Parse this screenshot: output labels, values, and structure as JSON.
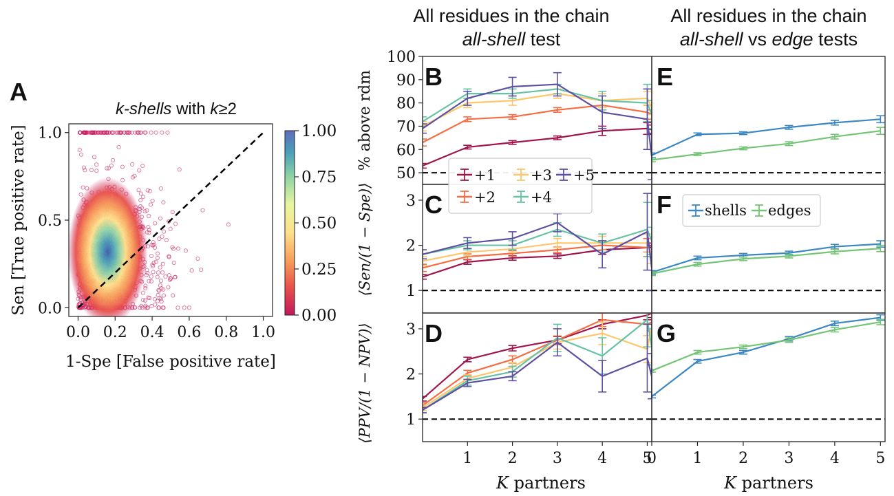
{
  "header": {
    "left_line1": "All residues in the chain",
    "left_line2_em": "all-shell",
    "left_line2_rest": " test",
    "right_line1": "All residues in the chain",
    "right_line2_em1": "all-shell",
    "right_line2_mid": " vs ",
    "right_line2_em2": "edge",
    "right_line2_rest": " tests"
  },
  "panel_letters": {
    "A": "A",
    "B": "B",
    "C": "C",
    "D": "D",
    "E": "E",
    "F": "F",
    "G": "G"
  },
  "panel_a": {
    "title_em1": "k-shells",
    "title_mid": " with ",
    "title_em2": "k",
    "title_rest": "≥2",
    "xlabel": "1-Spe [False positive rate]",
    "ylabel": "Sen [True positive rate]",
    "xticks": [
      "0.0",
      "0.2",
      "0.4",
      "0.6",
      "0.8",
      "1.0"
    ],
    "yticks": [
      "0.0",
      "0.5",
      "1.0"
    ],
    "colorbar_ticks": [
      "1.00",
      "0.75",
      "0.50",
      "0.25",
      "0.00"
    ]
  },
  "axes_text": {
    "ylabel_B": "% above rdm",
    "ylabel_C": "⟨Sen/(1 − Spe)⟩",
    "ylabel_D": "⟨PPV/(1 − NPV)⟩",
    "xlabel_left_em": "K",
    "xlabel_left_rest": " partners",
    "xlabel_right_em": "K",
    "xlabel_right_rest": " partners",
    "yticks_B": [
      "50",
      "60",
      "70",
      "80",
      "90",
      "100"
    ],
    "yticks_C": [
      "1",
      "2",
      "3"
    ],
    "yticks_D": [
      "1",
      "2",
      "3"
    ],
    "xticks_left": [
      "1",
      "2",
      "3",
      "4",
      "5"
    ],
    "xticks_right": [
      "0",
      "1",
      "2",
      "3",
      "4",
      "5"
    ]
  },
  "legend_left": [
    "+1",
    "+2",
    "+3",
    "+4",
    "+5"
  ],
  "legend_right": [
    "shells",
    "edges"
  ],
  "chart_data": [
    {
      "id": "A",
      "type": "scatter",
      "title": "k-shells with k≥2",
      "xlabel": "1-Spe [False positive rate]",
      "ylabel": "Sen [True positive rate]",
      "xlim": [
        -0.05,
        1.05
      ],
      "ylim": [
        -0.05,
        1.05
      ],
      "density_peak": [
        0.15,
        0.22
      ],
      "reference_line": [
        [
          0,
          0
        ],
        [
          1,
          1
        ]
      ],
      "colorbar": {
        "min": 0.0,
        "max": 1.0,
        "ticks": [
          0.0,
          0.25,
          0.5,
          0.75,
          1.0
        ]
      },
      "colors": {
        "points": "#c2185b",
        "dashed": "#000000"
      }
    },
    {
      "id": "B",
      "type": "line",
      "ylabel": "% above rdm",
      "ylim": [
        45,
        100
      ],
      "xlim": [
        0,
        5.1
      ],
      "x": [
        0,
        1,
        2,
        3,
        4,
        5,
        5.1
      ],
      "baseline": 50,
      "series": [
        {
          "name": "+1",
          "color": "#a0144b",
          "values": [
            53,
            61,
            63,
            65,
            68,
            69,
            68.5
          ],
          "err": [
            1,
            0.8,
            0.8,
            0.8,
            2,
            2.5,
            2
          ]
        },
        {
          "name": "+2",
          "color": "#f46d43",
          "values": [
            63,
            73,
            74,
            77,
            79,
            76,
            75
          ],
          "err": [
            1.5,
            1,
            1,
            1,
            2,
            3,
            2
          ]
        },
        {
          "name": "+3",
          "color": "#fdc66a",
          "values": [
            70,
            80,
            81,
            84,
            81,
            82,
            78
          ],
          "err": [
            2,
            2,
            2,
            2,
            3,
            3,
            3
          ]
        },
        {
          "name": "+4",
          "color": "#66c2a5",
          "values": [
            72,
            84,
            84,
            86,
            81,
            80,
            75
          ],
          "err": [
            2,
            2,
            2,
            2,
            4,
            8,
            6
          ]
        },
        {
          "name": "+5",
          "color": "#5e4fa2",
          "values": [
            69,
            82,
            87,
            88,
            76,
            73,
            57
          ],
          "err": [
            2,
            3,
            4,
            5,
            7,
            13,
            10
          ]
        }
      ]
    },
    {
      "id": "C",
      "type": "line",
      "ylabel": "⟨Sen/(1 − Spe)⟩",
      "ylim": [
        0.5,
        3.35
      ],
      "xlim": [
        0,
        5.1
      ],
      "x": [
        0,
        1,
        2,
        3,
        4,
        5,
        5.1
      ],
      "baseline": 1,
      "series": [
        {
          "name": "+1",
          "color": "#a0144b",
          "values": [
            1.3,
            1.63,
            1.72,
            1.76,
            1.9,
            1.95,
            1.95
          ],
          "err": [
            0.05,
            0.05,
            0.05,
            0.05,
            0.1,
            0.1,
            0.1
          ]
        },
        {
          "name": "+2",
          "color": "#f46d43",
          "values": [
            1.5,
            1.75,
            1.82,
            1.9,
            2.0,
            1.95,
            2.0
          ],
          "err": [
            0.08,
            0.06,
            0.06,
            0.06,
            0.1,
            0.2,
            0.15
          ]
        },
        {
          "name": "+3",
          "color": "#fdc66a",
          "values": [
            1.65,
            1.85,
            1.92,
            2.05,
            2.05,
            2.05,
            1.8
          ],
          "err": [
            0.1,
            0.08,
            0.08,
            0.1,
            0.15,
            0.2,
            0.2
          ]
        },
        {
          "name": "+4",
          "color": "#66c2a5",
          "values": [
            1.8,
            2.0,
            2.0,
            2.35,
            2.05,
            2.35,
            2.1
          ],
          "err": [
            0.1,
            0.1,
            0.1,
            0.15,
            0.2,
            0.6,
            0.3
          ]
        },
        {
          "name": "+5",
          "color": "#5e4fa2",
          "values": [
            1.8,
            2.05,
            2.15,
            2.5,
            1.8,
            2.3,
            1.5
          ],
          "err": [
            0.1,
            0.12,
            0.15,
            0.2,
            0.3,
            0.85,
            0.5
          ]
        }
      ]
    },
    {
      "id": "D",
      "type": "line",
      "ylabel": "⟨PPV/(1 − NPV)⟩",
      "xlabel": "K partners",
      "ylim": [
        0.5,
        3.35
      ],
      "xlim": [
        0,
        5.1
      ],
      "x": [
        0,
        1,
        2,
        3,
        4,
        5,
        5.1
      ],
      "baseline": 1,
      "series": [
        {
          "name": "+1",
          "color": "#a0144b",
          "values": [
            1.45,
            2.32,
            2.57,
            2.75,
            3.1,
            3.3,
            3.35
          ],
          "err": [
            0.05,
            0.05,
            0.06,
            0.08,
            0.1,
            0.1,
            0.1
          ]
        },
        {
          "name": "+2",
          "color": "#f46d43",
          "values": [
            1.3,
            2.02,
            2.32,
            2.75,
            3.2,
            3.1,
            3.15
          ],
          "err": [
            0.06,
            0.06,
            0.08,
            0.1,
            0.15,
            0.25,
            0.2
          ]
        },
        {
          "name": "+3",
          "color": "#fdc66a",
          "values": [
            1.25,
            1.9,
            2.15,
            2.7,
            2.9,
            2.55,
            3.05
          ],
          "err": [
            0.06,
            0.08,
            0.1,
            0.15,
            0.25,
            0.3,
            0.3
          ]
        },
        {
          "name": "+4",
          "color": "#66c2a5",
          "values": [
            1.2,
            1.85,
            2.05,
            2.8,
            2.4,
            3.2,
            2.6
          ],
          "err": [
            0.06,
            0.1,
            0.12,
            0.3,
            0.4,
            0.6,
            0.4
          ]
        },
        {
          "name": "+5",
          "color": "#5e4fa2",
          "values": [
            1.2,
            1.8,
            1.95,
            2.7,
            1.95,
            2.35,
            1.95
          ],
          "err": [
            0.06,
            0.08,
            0.1,
            0.3,
            0.35,
            0.75,
            0.5
          ]
        }
      ]
    },
    {
      "id": "E",
      "type": "line",
      "ylim": [
        45,
        100
      ],
      "xlim": [
        0,
        5.1
      ],
      "x": [
        0,
        1,
        2,
        3,
        4,
        5
      ],
      "baseline": 50,
      "series": [
        {
          "name": "shells",
          "color": "#3b87c4",
          "values": [
            57.5,
            66.5,
            67,
            69.5,
            71.5,
            73
          ],
          "err": [
            1,
            0.6,
            0.6,
            0.8,
            1,
            1.5
          ]
        },
        {
          "name": "edges",
          "color": "#74c476",
          "values": [
            55.5,
            58,
            60.5,
            62.5,
            65.5,
            68
          ],
          "err": [
            0.8,
            0.6,
            0.6,
            0.8,
            1,
            1.5
          ]
        }
      ]
    },
    {
      "id": "F",
      "type": "line",
      "ylim": [
        0.5,
        3.35
      ],
      "xlim": [
        0,
        5.1
      ],
      "x": [
        0,
        1,
        2,
        3,
        4,
        5
      ],
      "baseline": 1,
      "series": [
        {
          "name": "shells",
          "color": "#3b87c4",
          "values": [
            1.4,
            1.72,
            1.78,
            1.83,
            1.97,
            2.03
          ],
          "err": [
            0.04,
            0.04,
            0.04,
            0.04,
            0.05,
            0.07
          ]
        },
        {
          "name": "edges",
          "color": "#74c476",
          "values": [
            1.37,
            1.58,
            1.7,
            1.76,
            1.86,
            1.93
          ],
          "err": [
            0.04,
            0.04,
            0.04,
            0.04,
            0.05,
            0.07
          ]
        }
      ]
    },
    {
      "id": "G",
      "type": "line",
      "xlabel": "K partners",
      "ylim": [
        0.5,
        3.35
      ],
      "xlim": [
        0,
        5.1
      ],
      "x": [
        0,
        1,
        2,
        3,
        4,
        5
      ],
      "baseline": 1,
      "series": [
        {
          "name": "shells",
          "color": "#3b87c4",
          "values": [
            1.5,
            2.28,
            2.48,
            2.78,
            3.12,
            3.25
          ],
          "err": [
            0.03,
            0.04,
            0.04,
            0.05,
            0.05,
            0.06
          ]
        },
        {
          "name": "edges",
          "color": "#74c476",
          "values": [
            2.07,
            2.48,
            2.6,
            2.75,
            2.98,
            3.15
          ],
          "err": [
            0.03,
            0.04,
            0.04,
            0.05,
            0.05,
            0.06
          ]
        }
      ]
    }
  ]
}
